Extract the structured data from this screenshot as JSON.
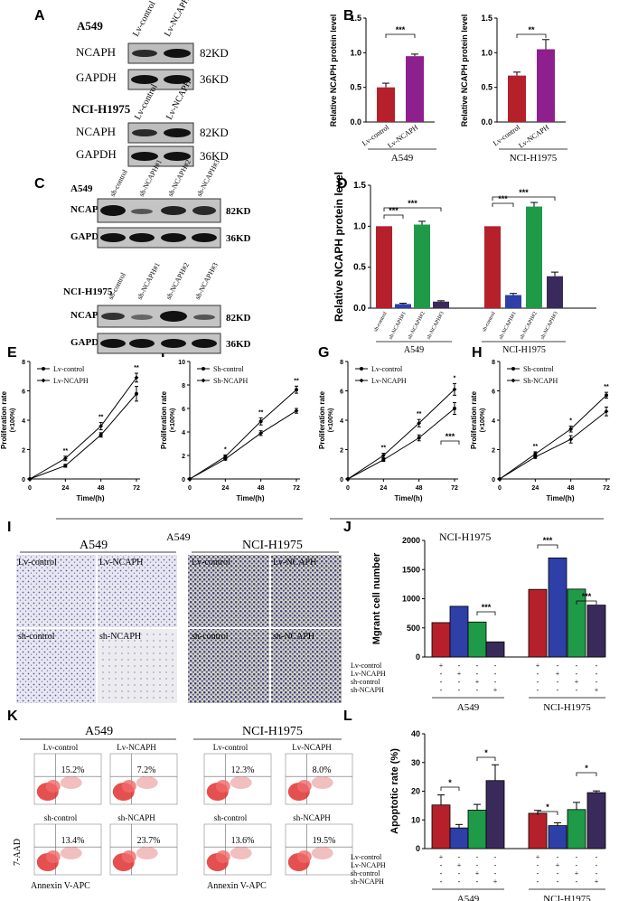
{
  "panels": {
    "A": "A",
    "B": "B",
    "C": "C",
    "D": "D",
    "E": "E",
    "F": "F",
    "G": "G",
    "H": "H",
    "I": "I",
    "J": "J",
    "K": "K",
    "L": "L"
  },
  "panel_a": {
    "top_cell": "A549",
    "top_lanes": [
      "Lv-control",
      "Lv-NCAPH"
    ],
    "bottom_cell": "NCI-H1975",
    "bottom_lanes": [
      "Lv-control",
      "Lv-NCAPH"
    ],
    "rows": [
      "NCAPH",
      "GAPDH"
    ],
    "sizes": [
      "82KD",
      "36KD"
    ]
  },
  "panel_c": {
    "top_cell": "A549",
    "bottom_cell": "NCI-H1975",
    "lanes": [
      "sh-control",
      "sh-NCAPH#1",
      "sh-NCAPH#2",
      "sh-NCAPH#3"
    ],
    "rows": [
      "NCAPH",
      "GAPDH"
    ],
    "sizes": [
      "82KD",
      "36KD"
    ]
  },
  "panel_i": {
    "groups": [
      "A549",
      "NCI-H1975"
    ],
    "labels": [
      "Lv-control",
      "Lv-NCAPH",
      "sh-control",
      "sh-NCAPH",
      "Lv-control",
      "Lv-NCAPH",
      "sh-control",
      "sh-NCAPH"
    ]
  },
  "panel_k": {
    "groups": [
      "A549",
      "NCI-H1975"
    ],
    "labels": [
      "Lv-control",
      "Lv-NCAPH",
      "sh-control",
      "sh-NCAPH",
      "Lv-control",
      "Lv-NCAPH",
      "sh-control",
      "sh-NCAPH"
    ],
    "percents": [
      "15.2%",
      "7.2%",
      "13.4%",
      "23.7%",
      "12.3%",
      "8.0%",
      "13.6%",
      "19.5%"
    ],
    "xlabel": "Annexin V-APC",
    "ylabel": "7-AAD"
  },
  "prolif_group_labels": [
    "A549",
    "NCI-H1975"
  ],
  "colors": {
    "red": "#b5202a",
    "purple": "#8e1f8e",
    "blue": "#2e3fa8",
    "green": "#1f9a48",
    "dark": "#3a2a5c"
  },
  "chart_data": [
    {
      "type": "bar",
      "panel": "B1",
      "categories": [
        "Lv-control",
        "Lv-NCAPH"
      ],
      "values": [
        0.5,
        0.95
      ],
      "errors": [
        0.06,
        0.03
      ],
      "ylabel": "Relative NCAPH protein level",
      "ylim": [
        0,
        1.5
      ],
      "yticks": [
        "0.0",
        "0.5",
        "1.0",
        "1.5"
      ],
      "group": "A549",
      "sig": "***"
    },
    {
      "type": "bar",
      "panel": "B2",
      "categories": [
        "Lv-control",
        "Lv-NCAPH"
      ],
      "values": [
        0.67,
        1.05
      ],
      "errors": [
        0.05,
        0.14
      ],
      "ylabel": "Relative NCAPH protein level",
      "ylim": [
        0,
        1.5
      ],
      "yticks": [
        "0.0",
        "0.5",
        "1.0",
        "1.5"
      ],
      "group": "NCI-H1975",
      "sig": "**"
    },
    {
      "type": "bar",
      "panel": "D",
      "categories": [
        "sh-control",
        "sh-NCAPH#1",
        "sh-NCAPH#2",
        "sh-NCAPH#3",
        "sh-control",
        "sh-NCAPH#1",
        "sh-NCAPH#2",
        "sh-NCAPH#3"
      ],
      "values": [
        1.0,
        0.05,
        1.02,
        0.08,
        1.0,
        0.16,
        1.24,
        0.39
      ],
      "errors": [
        0,
        0.01,
        0.04,
        0.01,
        0,
        0.02,
        0.05,
        0.05
      ],
      "ylabel": "Relative NCAPH protein level",
      "ylim": [
        0,
        1.5
      ],
      "yticks": [
        "0.0",
        "0.5",
        "1.0",
        "1.5"
      ],
      "groups": [
        "A549",
        "NCI-H1975"
      ],
      "sigs": [
        "***",
        "***",
        "***",
        "***"
      ]
    },
    {
      "type": "line",
      "panel": "E",
      "x": [
        0,
        24,
        48,
        72
      ],
      "series": [
        {
          "name": "Lv-control",
          "values": [
            0,
            0.9,
            3.0,
            5.8
          ],
          "errors": [
            0,
            0.1,
            0.15,
            0.5
          ]
        },
        {
          "name": "Lv-NCAPH",
          "values": [
            0,
            1.4,
            3.6,
            6.9
          ],
          "errors": [
            0,
            0.15,
            0.25,
            0.3
          ]
        }
      ],
      "xlabel": "Time/(h)",
      "ylabel": "Proliferation rate",
      "ylabel2": "(×100%)",
      "ylim": [
        0,
        8
      ],
      "yticks": [
        "0",
        "2",
        "4",
        "6",
        "8"
      ],
      "xticks": [
        "0",
        "24",
        "48",
        "72"
      ],
      "sigs": [
        "**",
        "**",
        "**"
      ]
    },
    {
      "type": "line",
      "panel": "F",
      "x": [
        0,
        24,
        48,
        72
      ],
      "series": [
        {
          "name": "Sh-control",
          "values": [
            0,
            1.9,
            4.9,
            7.6
          ],
          "errors": [
            0,
            0.15,
            0.3,
            0.3
          ]
        },
        {
          "name": "Sh-NCAPH",
          "values": [
            0,
            1.7,
            3.9,
            5.8
          ],
          "errors": [
            0,
            0.1,
            0.2,
            0.2
          ]
        }
      ],
      "xlabel": "Time/(h)",
      "ylabel": "Proliferation rate",
      "ylabel2": "(×100%)",
      "ylim": [
        0,
        10
      ],
      "yticks": [
        "0",
        "2",
        "4",
        "6",
        "8",
        "10"
      ],
      "xticks": [
        "0",
        "24",
        "48",
        "72"
      ],
      "sigs": [
        "*",
        "**",
        "**"
      ]
    },
    {
      "type": "line",
      "panel": "G",
      "x": [
        0,
        24,
        48,
        72
      ],
      "series": [
        {
          "name": "Lv-control",
          "values": [
            0,
            1.3,
            2.8,
            4.8
          ],
          "errors": [
            0,
            0.1,
            0.2,
            0.4
          ]
        },
        {
          "name": "Lv-NCAPH",
          "values": [
            0,
            1.6,
            3.8,
            6.1
          ],
          "errors": [
            0,
            0.15,
            0.25,
            0.4
          ]
        }
      ],
      "xlabel": "Time/(h)",
      "ylabel": "Proliferation rate",
      "ylabel2": "(×100%)",
      "ylim": [
        0,
        8
      ],
      "yticks": [
        "0",
        "2",
        "4",
        "6",
        "8"
      ],
      "xticks": [
        "0",
        "24",
        "48",
        "72"
      ],
      "sigs": [
        "**",
        "**",
        "*"
      ]
    },
    {
      "type": "line",
      "panel": "H",
      "x": [
        0,
        24,
        48,
        72
      ],
      "series": [
        {
          "name": "Sh-control",
          "values": [
            0,
            1.7,
            3.4,
            5.7
          ],
          "errors": [
            0,
            0.15,
            0.2,
            0.2
          ]
        },
        {
          "name": "Sh-NCAPH",
          "values": [
            0,
            1.5,
            2.7,
            4.6
          ],
          "errors": [
            0,
            0.1,
            0.25,
            0.3
          ]
        }
      ],
      "xlabel": "Time/(h)",
      "ylabel": "Proliferation rate",
      "ylabel2": "(×100%)",
      "ylim": [
        0,
        8
      ],
      "yticks": [
        "0",
        "2",
        "4",
        "6",
        "8"
      ],
      "xticks": [
        "0",
        "24",
        "48",
        "72"
      ],
      "sigs": [
        "**",
        "*",
        "**"
      ]
    },
    {
      "type": "bar",
      "panel": "J",
      "values": [
        590,
        870,
        600,
        260,
        1160,
        1700,
        1165,
        890
      ],
      "ylabel": "Mgrant cell number",
      "ylim": [
        0,
        2000
      ],
      "yticks": [
        "0",
        "500",
        "1000",
        "1500",
        "2000"
      ],
      "groups": [
        "A549",
        "NCI-H1975"
      ],
      "row_labels": [
        "Lv-control",
        "Lv-NCAPH",
        "sh-control",
        "sh-NCAPH"
      ],
      "signs": [
        [
          "+",
          "-",
          "-",
          "-"
        ],
        [
          "-",
          "+",
          "-",
          "-"
        ],
        [
          "-",
          "-",
          "+",
          "-"
        ],
        [
          "-",
          "-",
          "-",
          "+"
        ]
      ],
      "sigs": [
        "***",
        "***",
        "***",
        "***"
      ]
    },
    {
      "type": "bar",
      "panel": "L",
      "values": [
        15.2,
        7.2,
        13.4,
        23.7,
        12.3,
        8.0,
        13.6,
        19.5
      ],
      "errors": [
        3.5,
        1.2,
        2.0,
        5.5,
        1.0,
        1.0,
        2.5,
        0.6
      ],
      "ylabel": "Apoptotic rate (%)",
      "ylim": [
        0,
        40
      ],
      "yticks": [
        "0",
        "10",
        "20",
        "30",
        "40"
      ],
      "groups": [
        "A549",
        "NCI-H1975"
      ],
      "row_labels": [
        "Lv-control",
        "Lv-NCAPH",
        "sh-control",
        "sh-NCAPH"
      ],
      "signs": [
        [
          "+",
          "-",
          "-",
          "-"
        ],
        [
          "-",
          "+",
          "-",
          "-"
        ],
        [
          "-",
          "-",
          "+",
          "-"
        ],
        [
          "-",
          "-",
          "-",
          "+"
        ]
      ],
      "sigs": [
        "*",
        "*",
        "*",
        "*"
      ]
    }
  ]
}
